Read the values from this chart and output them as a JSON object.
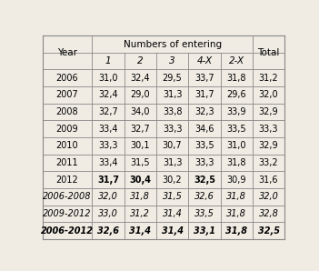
{
  "header_group": "Numbers of entering",
  "sub_headers": [
    "1",
    "2",
    "3",
    "4-X",
    "2-X"
  ],
  "rows": [
    [
      "2006",
      "31,0",
      "32,4",
      "29,5",
      "33,7",
      "31,8",
      "31,2"
    ],
    [
      "2007",
      "32,4",
      "29,0",
      "31,3",
      "31,7",
      "29,6",
      "32,0"
    ],
    [
      "2008",
      "32,7",
      "34,0",
      "33,8",
      "32,3",
      "33,9",
      "32,9"
    ],
    [
      "2009",
      "33,4",
      "32,7",
      "33,3",
      "34,6",
      "33,5",
      "33,3"
    ],
    [
      "2010",
      "33,3",
      "30,1",
      "30,7",
      "33,5",
      "31,0",
      "32,9"
    ],
    [
      "2011",
      "33,4",
      "31,5",
      "31,3",
      "33,3",
      "31,8",
      "33,2"
    ],
    [
      "2012",
      "31,7",
      "30,4",
      "30,2",
      "32,5",
      "30,9",
      "31,6"
    ],
    [
      "2006-2008",
      "32,0",
      "31,8",
      "31,5",
      "32,6",
      "31,8",
      "32,0"
    ],
    [
      "2009-2012",
      "33,0",
      "31,2",
      "31,4",
      "33,5",
      "31,8",
      "32,8"
    ],
    [
      "2006-2012",
      "32,6",
      "31,4",
      "31,4",
      "33,1",
      "31,8",
      "32,5"
    ]
  ],
  "bold_cells": {
    "6": [
      1,
      2,
      4
    ],
    "7": [
      4
    ],
    "8": [
      4
    ],
    "9": [
      1,
      2,
      4
    ]
  },
  "italic_rows": [
    7,
    8
  ],
  "italic_bold_rows": [
    9
  ],
  "bg_color": "#f0ece4",
  "line_color": "#888888"
}
